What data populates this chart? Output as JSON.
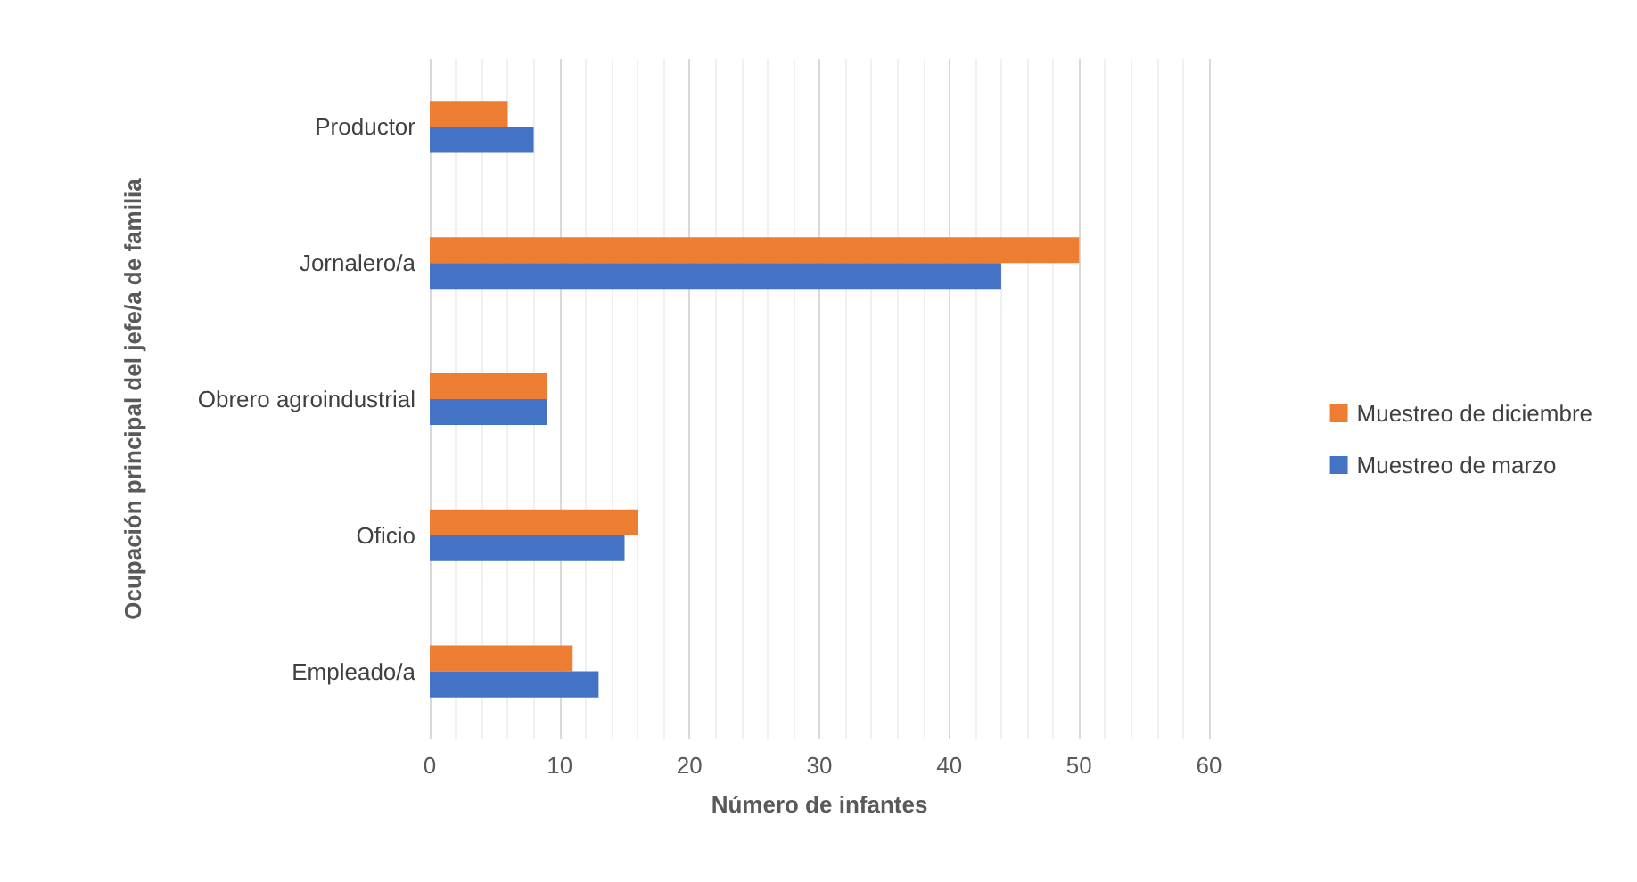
{
  "chart_data": {
    "type": "bar",
    "orientation": "horizontal",
    "categories": [
      "Productor",
      "Jornalero/a",
      "Obrero agroindustrial",
      "Oficio",
      "Empleado/a"
    ],
    "series": [
      {
        "name": "Muestreo de diciembre",
        "color": "#ed7d31",
        "values": [
          6,
          50,
          9,
          16,
          11
        ]
      },
      {
        "name": "Muestreo de marzo",
        "color": "#4472c4",
        "values": [
          8,
          44,
          9,
          15,
          13
        ]
      }
    ],
    "xlim": [
      0,
      60
    ],
    "xticks": [
      0,
      10,
      20,
      30,
      40,
      50,
      60
    ],
    "xlabel": "Número de infantes",
    "ylabel": "Ocupación principal del jefe/a de familia",
    "grid": "x",
    "legend": "right"
  }
}
